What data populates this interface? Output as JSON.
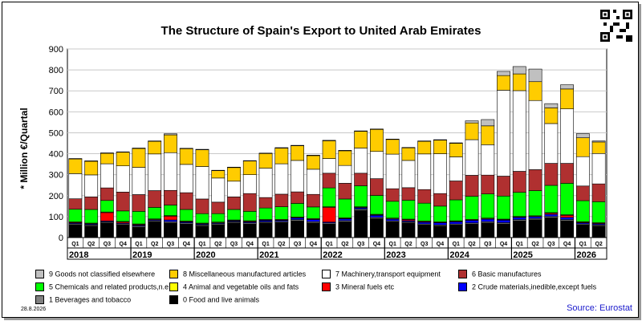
{
  "header": {
    "title": "The Structure of Spain's Export to United Arab Emirates"
  },
  "footer": {
    "date": "28.8.2026",
    "source": "Source: Eurostat"
  },
  "colors": {
    "axis": "#000000",
    "grid": "#c8c8c8"
  },
  "chart_data": {
    "type": "bar",
    "stacked": true,
    "ylabel": "* Million €/Quartal",
    "ylim": [
      0,
      900
    ],
    "yticks": [
      0,
      100,
      200,
      300,
      400,
      500,
      600,
      700,
      800,
      900
    ],
    "grid": true,
    "categories": [
      "Q1",
      "Q2",
      "Q3",
      "Q4",
      "Q1",
      "Q2",
      "Q3",
      "Q4",
      "Q1",
      "Q2",
      "Q3",
      "Q4",
      "Q1",
      "Q2",
      "Q3",
      "Q4",
      "Q1",
      "Q2",
      "Q3",
      "Q4",
      "Q1",
      "Q2",
      "Q3",
      "Q4",
      "Q1",
      "Q2",
      "Q3",
      "Q4",
      "Q1",
      "Q2",
      "Q3",
      "Q4",
      "Q1",
      "Q2"
    ],
    "years": [
      "2018",
      "2019",
      "2020",
      "2021",
      "2022",
      "2023",
      "2024",
      "2025",
      "2026"
    ],
    "series": [
      {
        "name": "0 Food and live animals",
        "color": "#000000",
        "values": [
          60,
          55,
          70,
          60,
          50,
          75,
          70,
          65,
          55,
          60,
          70,
          65,
          70,
          72,
          80,
          70,
          65,
          75,
          130,
          90,
          75,
          70,
          60,
          55,
          60,
          65,
          70,
          65,
          80,
          85,
          95,
          80,
          60,
          55
        ]
      },
      {
        "name": "1 Beverages and tobacco",
        "color": "#808080",
        "values": [
          5,
          5,
          5,
          5,
          5,
          5,
          6,
          5,
          5,
          5,
          5,
          5,
          5,
          5,
          6,
          6,
          5,
          6,
          6,
          6,
          5,
          5,
          5,
          5,
          5,
          5,
          6,
          6,
          6,
          6,
          6,
          6,
          5,
          5
        ]
      },
      {
        "name": "2 Crude materials,inedible,except fuels",
        "color": "#0000ff",
        "values": [
          4,
          4,
          4,
          4,
          4,
          4,
          8,
          4,
          4,
          4,
          4,
          4,
          6,
          5,
          7,
          10,
          4,
          8,
          6,
          10,
          8,
          5,
          8,
          10,
          10,
          12,
          12,
          12,
          10,
          8,
          10,
          10,
          5,
          5
        ]
      },
      {
        "name": "3 Mineral fuels etc",
        "color": "#ff0000",
        "values": [
          3,
          2,
          40,
          5,
          3,
          2,
          18,
          2,
          2,
          2,
          2,
          3,
          2,
          2,
          2,
          2,
          70,
          2,
          2,
          2,
          2,
          5,
          3,
          2,
          2,
          2,
          2,
          2,
          2,
          2,
          5,
          10,
          3,
          3
        ]
      },
      {
        "name": "4 Animal and vegetable oils and fats",
        "color": "#ffff00",
        "values": [
          3,
          3,
          3,
          3,
          3,
          3,
          3,
          3,
          3,
          3,
          3,
          3,
          3,
          3,
          3,
          3,
          3,
          3,
          3,
          3,
          3,
          3,
          3,
          3,
          3,
          3,
          3,
          3,
          3,
          3,
          3,
          3,
          3,
          3
        ]
      },
      {
        "name": "5 Chemicals and related products,n.e.s.",
        "color": "#00ff00",
        "values": [
          60,
          65,
          55,
          50,
          60,
          55,
          50,
          55,
          45,
          40,
          50,
          45,
          55,
          60,
          65,
          55,
          90,
          90,
          100,
          90,
          80,
          90,
          85,
          75,
          100,
          110,
          115,
          110,
          115,
          120,
          130,
          150,
          100,
          100
        ]
      },
      {
        "name": "6 Basic manufactures",
        "color": "#b03030",
        "values": [
          50,
          60,
          60,
          90,
          80,
          80,
          70,
          80,
          70,
          55,
          60,
          85,
          50,
          60,
          55,
          60,
          70,
          75,
          60,
          80,
          60,
          60,
          65,
          60,
          90,
          100,
          90,
          95,
          100,
          100,
          105,
          95,
          70,
          85
        ]
      },
      {
        "name": "7 Machinery,transport equipment",
        "color": "#ffffff",
        "values": [
          120,
          105,
          115,
          125,
          130,
          175,
          180,
          135,
          155,
          115,
          75,
          90,
          140,
          145,
          150,
          120,
          70,
          85,
          120,
          130,
          165,
          130,
          170,
          190,
          115,
          170,
          145,
          410,
          385,
          330,
          190,
          260,
          140,
          145
        ]
      },
      {
        "name": "8 Miscellaneous manufactured articles",
        "color": "#ffcc00",
        "values": [
          70,
          65,
          50,
          65,
          90,
          60,
          85,
          75,
          80,
          35,
          65,
          65,
          70,
          75,
          70,
          65,
          85,
          70,
          80,
          105,
          70,
          60,
          60,
          65,
          65,
          80,
          90,
          70,
          80,
          90,
          75,
          95,
          90,
          55
        ]
      },
      {
        "name": "9 Goods not classified elsewhere",
        "color": "#c0c0c0",
        "values": [
          2,
          2,
          2,
          2,
          2,
          2,
          5,
          2,
          2,
          2,
          2,
          2,
          2,
          2,
          2,
          2,
          2,
          2,
          2,
          2,
          2,
          2,
          2,
          2,
          2,
          10,
          30,
          20,
          35,
          60,
          20,
          20,
          20,
          5
        ]
      }
    ]
  }
}
